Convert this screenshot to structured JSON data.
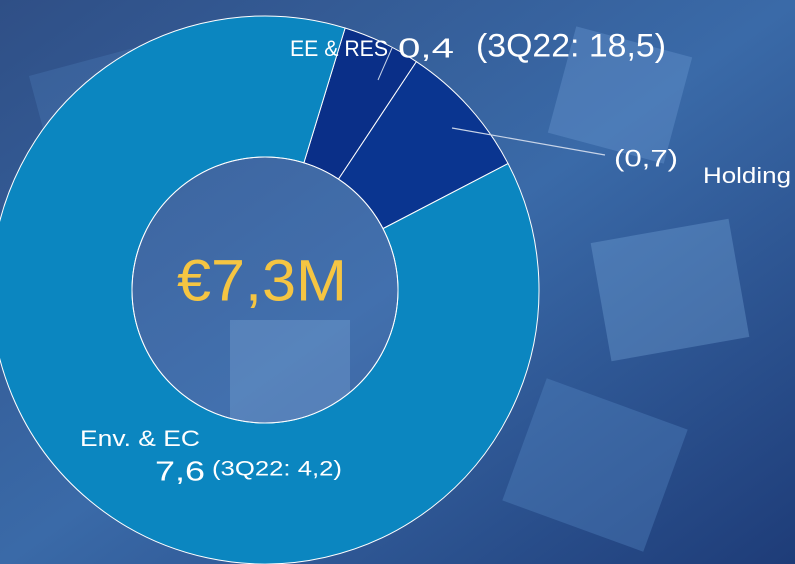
{
  "chart_data": {
    "type": "pie",
    "donut": true,
    "center_label": "€7,3M",
    "categories": [
      "EE & RES",
      "Holding",
      "Env. & EC"
    ],
    "values": [
      0.4,
      -0.7,
      7.6
    ],
    "value_labels": [
      "0,4",
      "(0,7)",
      "7,6"
    ],
    "colors": [
      "#0a2f88",
      "#0a3590",
      "#0b86c0"
    ],
    "annotations": [
      "(3Q22: 18,5)",
      "(3Q22: 4,2)"
    ]
  }
}
